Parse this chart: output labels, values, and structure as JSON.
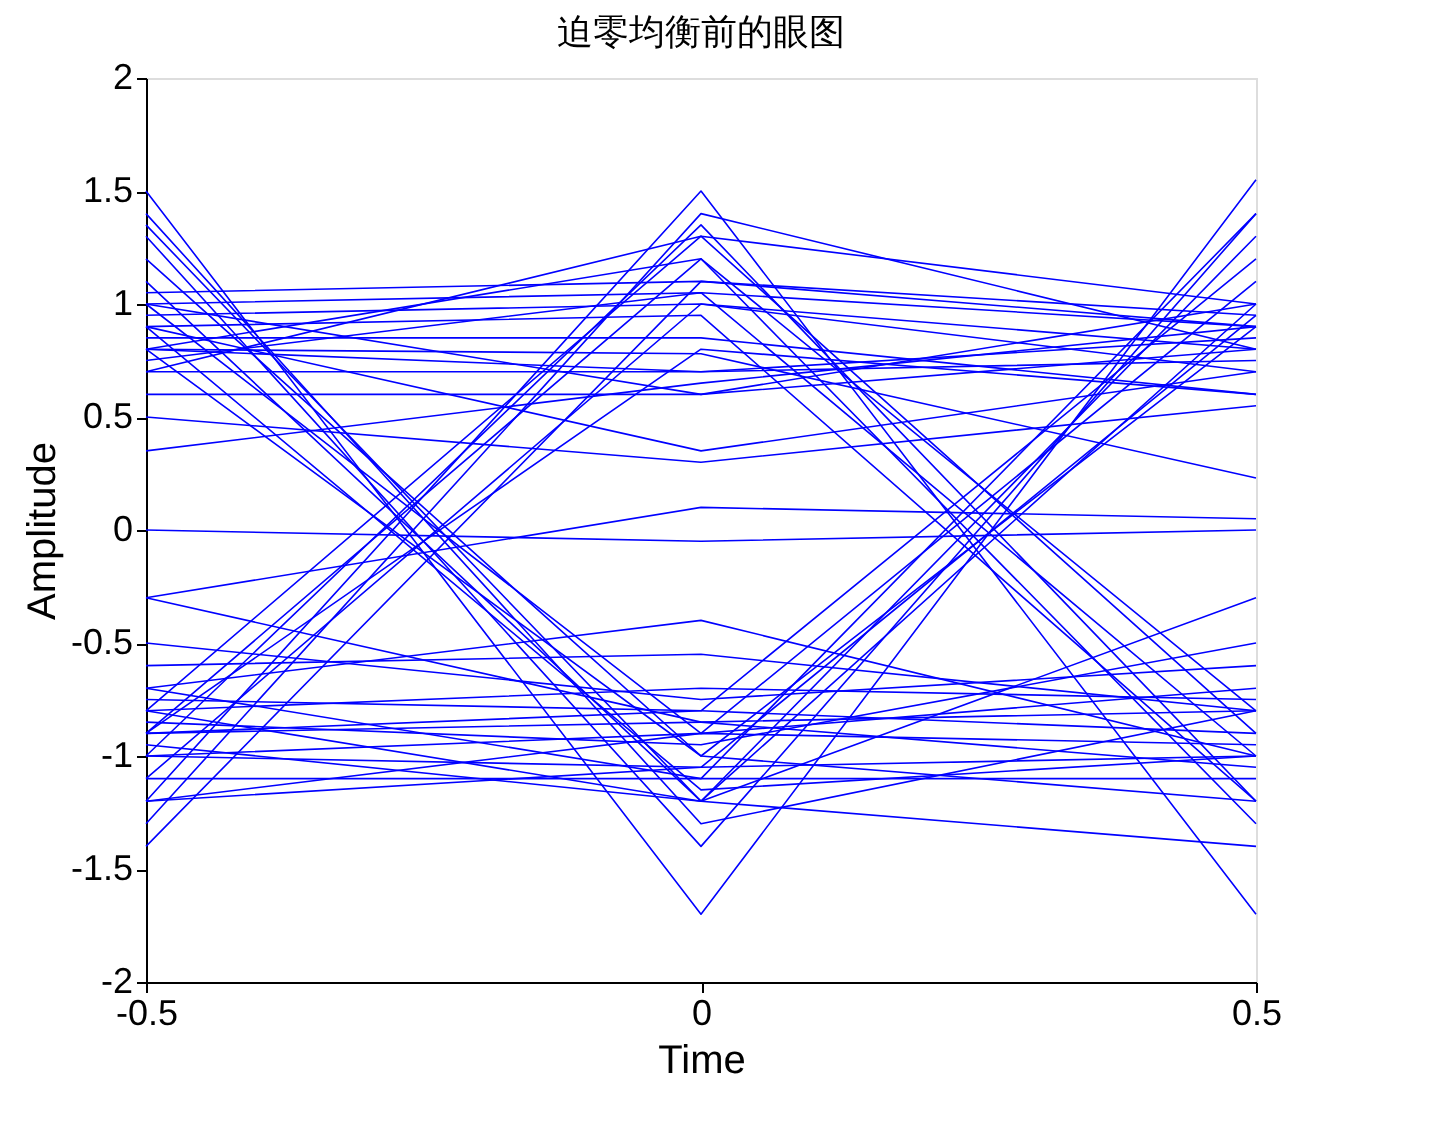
{
  "chart_data": {
    "type": "line",
    "title": "迫零均衡前的眼图",
    "xlabel": "Time",
    "ylabel": "Amplitude",
    "xlim": [
      -0.5,
      0.5
    ],
    "xticks": [
      -0.5,
      0,
      0.5
    ],
    "ylim": [
      -2,
      2
    ],
    "yticks": [
      -2,
      -1.5,
      -1,
      -0.5,
      0,
      0.5,
      1,
      1.5,
      2
    ],
    "grid": false,
    "legend": false,
    "line_style": "solid",
    "marker": "none",
    "series": [
      {
        "color": "#0000ff",
        "x": [
          -0.5,
          0,
          0.5
        ],
        "values": [
          1.05,
          1.1,
          0.95
        ]
      },
      {
        "color": "#0000ff",
        "x": [
          -0.5,
          0,
          0.5
        ],
        "values": [
          0.8,
          0.7,
          0.85
        ]
      },
      {
        "color": "#0000ff",
        "x": [
          -0.5,
          0,
          0.5
        ],
        "values": [
          0.7,
          0.7,
          0.75
        ]
      },
      {
        "color": "#0000ff",
        "x": [
          -0.5,
          0,
          0.5
        ],
        "values": [
          0.95,
          1.0,
          0.8
        ]
      },
      {
        "color": "#0000ff",
        "x": [
          -0.5,
          0,
          0.5
        ],
        "values": [
          0.6,
          0.6,
          0.8
        ]
      },
      {
        "color": "#0000ff",
        "x": [
          -0.5,
          0,
          0.5
        ],
        "values": [
          0.85,
          0.85,
          0.6
        ]
      },
      {
        "color": "#0000ff",
        "x": [
          -0.5,
          0,
          0.5
        ],
        "values": [
          0.75,
          1.05,
          0.9
        ]
      },
      {
        "color": "#0000ff",
        "x": [
          -0.5,
          0,
          0.5
        ],
        "values": [
          1.0,
          0.6,
          1.0
        ]
      },
      {
        "color": "#0000ff",
        "x": [
          -0.5,
          0,
          0.5
        ],
        "values": [
          0.5,
          0.3,
          0.55
        ]
      },
      {
        "color": "#0000ff",
        "x": [
          -0.5,
          0,
          0.5
        ],
        "values": [
          0.9,
          0.35,
          0.7
        ]
      },
      {
        "color": "#0000ff",
        "x": [
          -0.5,
          0,
          0.5
        ],
        "values": [
          0.35,
          0.65,
          0.9
        ]
      },
      {
        "color": "#0000ff",
        "x": [
          -0.5,
          0,
          0.5
        ],
        "values": [
          0.8,
          0.78,
          0.23
        ]
      },
      {
        "color": "#0000ff",
        "x": [
          -0.5,
          0,
          0.5
        ],
        "values": [
          -1.2,
          1.5,
          -1.7
        ]
      },
      {
        "color": "#0000ff",
        "x": [
          -0.5,
          0,
          0.5
        ],
        "values": [
          -1.0,
          1.35,
          -1.2
        ]
      },
      {
        "color": "#0000ff",
        "x": [
          -0.5,
          0,
          0.5
        ],
        "values": [
          -0.9,
          1.2,
          -0.8
        ]
      },
      {
        "color": "#0000ff",
        "x": [
          -0.5,
          0,
          0.5
        ],
        "values": [
          -1.3,
          1.4,
          0.8
        ]
      },
      {
        "color": "#0000ff",
        "x": [
          -0.5,
          0,
          0.5
        ],
        "values": [
          -0.8,
          1.3,
          1.0
        ]
      },
      {
        "color": "#0000ff",
        "x": [
          -0.5,
          0,
          0.5
        ],
        "values": [
          -1.1,
          1.0,
          0.7
        ]
      },
      {
        "color": "#0000ff",
        "x": [
          -0.5,
          0,
          0.5
        ],
        "values": [
          -1.4,
          1.1,
          0.9
        ]
      },
      {
        "color": "#0000ff",
        "x": [
          -0.5,
          0,
          0.5
        ],
        "values": [
          -0.9,
          0.8,
          0.6
        ]
      },
      {
        "color": "#0000ff",
        "x": [
          -0.5,
          0,
          0.5
        ],
        "values": [
          0.8,
          1.2,
          -1.3
        ]
      },
      {
        "color": "#0000ff",
        "x": [
          -0.5,
          0,
          0.5
        ],
        "values": [
          1.0,
          1.05,
          -1.0
        ]
      },
      {
        "color": "#0000ff",
        "x": [
          -0.5,
          0,
          0.5
        ],
        "values": [
          0.7,
          1.3,
          -0.9
        ]
      },
      {
        "color": "#0000ff",
        "x": [
          -0.5,
          0,
          0.5
        ],
        "values": [
          0.9,
          0.95,
          -1.2
        ]
      },
      {
        "color": "#0000ff",
        "x": [
          -0.5,
          0,
          0.5
        ],
        "values": [
          -0.75,
          -0.8,
          -0.9
        ]
      },
      {
        "color": "#0000ff",
        "x": [
          -0.5,
          0,
          0.5
        ],
        "values": [
          -0.9,
          -0.85,
          -0.8
        ]
      },
      {
        "color": "#0000ff",
        "x": [
          -0.5,
          0,
          0.5
        ],
        "values": [
          -1.0,
          -1.05,
          -1.0
        ]
      },
      {
        "color": "#0000ff",
        "x": [
          -0.5,
          0,
          0.5
        ],
        "values": [
          -0.8,
          -0.7,
          -0.75
        ]
      },
      {
        "color": "#0000ff",
        "x": [
          -0.5,
          0,
          0.5
        ],
        "values": [
          -0.6,
          -0.55,
          -0.8
        ]
      },
      {
        "color": "#0000ff",
        "x": [
          -0.5,
          0,
          0.5
        ],
        "values": [
          -1.1,
          -1.1,
          -1.1
        ]
      },
      {
        "color": "#0000ff",
        "x": [
          -0.5,
          0,
          0.5
        ],
        "values": [
          -0.85,
          -0.95,
          -0.5
        ]
      },
      {
        "color": "#0000ff",
        "x": [
          -0.5,
          0,
          0.5
        ],
        "values": [
          -0.5,
          -0.75,
          -0.6
        ]
      },
      {
        "color": "#0000ff",
        "x": [
          -0.5,
          0,
          0.5
        ],
        "values": [
          -1.2,
          -0.9,
          -0.95
        ]
      },
      {
        "color": "#0000ff",
        "x": [
          -0.5,
          0,
          0.5
        ],
        "values": [
          -0.7,
          -0.4,
          -1.0
        ]
      },
      {
        "color": "#0000ff",
        "x": [
          -0.5,
          0,
          0.5
        ],
        "values": [
          -0.95,
          -1.2,
          -0.3
        ]
      },
      {
        "color": "#0000ff",
        "x": [
          -0.5,
          0,
          0.5
        ],
        "values": [
          -0.3,
          -0.85,
          -1.05
        ]
      },
      {
        "color": "#0000ff",
        "x": [
          -0.5,
          0,
          0.5
        ],
        "values": [
          1.5,
          -1.7,
          1.55
        ]
      },
      {
        "color": "#0000ff",
        "x": [
          -0.5,
          0,
          0.5
        ],
        "values": [
          1.3,
          -1.4,
          1.4
        ]
      },
      {
        "color": "#0000ff",
        "x": [
          -0.5,
          0,
          0.5
        ],
        "values": [
          1.1,
          -1.2,
          1.0
        ]
      },
      {
        "color": "#0000ff",
        "x": [
          -0.5,
          0,
          0.5
        ],
        "values": [
          0.8,
          -1.0,
          0.9
        ]
      },
      {
        "color": "#0000ff",
        "x": [
          -0.5,
          0,
          0.5
        ],
        "values": [
          1.4,
          -1.3,
          -0.8
        ]
      },
      {
        "color": "#0000ff",
        "x": [
          -0.5,
          0,
          0.5
        ],
        "values": [
          1.2,
          -1.0,
          -1.2
        ]
      },
      {
        "color": "#0000ff",
        "x": [
          -0.5,
          0,
          0.5
        ],
        "values": [
          0.9,
          -1.15,
          -1.0
        ]
      },
      {
        "color": "#0000ff",
        "x": [
          -0.5,
          0,
          0.5
        ],
        "values": [
          1.0,
          -0.9,
          -0.7
        ]
      },
      {
        "color": "#0000ff",
        "x": [
          -0.5,
          0,
          0.5
        ],
        "values": [
          1.35,
          -1.2,
          -1.4
        ]
      },
      {
        "color": "#0000ff",
        "x": [
          -0.5,
          0,
          0.5
        ],
        "values": [
          -0.8,
          -1.2,
          1.3
        ]
      },
      {
        "color": "#0000ff",
        "x": [
          -0.5,
          0,
          0.5
        ],
        "values": [
          -1.0,
          -0.9,
          1.1
        ]
      },
      {
        "color": "#0000ff",
        "x": [
          -0.5,
          0,
          0.5
        ],
        "values": [
          -0.7,
          -1.1,
          1.4
        ]
      },
      {
        "color": "#0000ff",
        "x": [
          -0.5,
          0,
          0.5
        ],
        "values": [
          -1.2,
          -1.05,
          0.95
        ]
      },
      {
        "color": "#0000ff",
        "x": [
          -0.5,
          0,
          0.5
        ],
        "values": [
          -0.9,
          -0.8,
          1.2
        ]
      },
      {
        "color": "#0000ff",
        "x": [
          -0.5,
          0,
          0.5
        ],
        "values": [
          0.0,
          -0.05,
          0.0
        ]
      },
      {
        "color": "#0000ff",
        "x": [
          -0.5,
          0,
          0.5
        ],
        "values": [
          -0.3,
          0.1,
          0.05
        ]
      }
    ]
  }
}
